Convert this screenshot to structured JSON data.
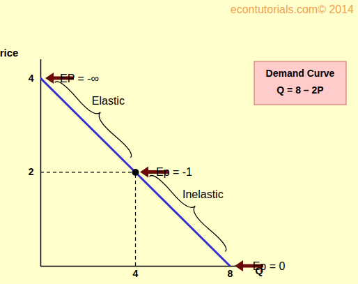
{
  "chart_data": {
    "type": "line",
    "title": "Demand Curve",
    "subtitle": "Q = 8 – 2P",
    "watermark": "econtutorials.com© 2014",
    "x_label": "Q",
    "y_label": "Price",
    "x": [
      0,
      4,
      8
    ],
    "values": [
      4,
      2,
      0
    ],
    "color": "#3a2fd0",
    "xlim": [
      0,
      9
    ],
    "ylim": [
      0,
      4.4
    ],
    "xticks": [
      4,
      8
    ],
    "yticks": [
      2,
      4
    ],
    "grid": false,
    "annotations": [
      {
        "text": "EP = -∞",
        "x": 0,
        "y": 4
      },
      {
        "text": "Ep = -1",
        "x": 4,
        "y": 2,
        "marker": "dot"
      },
      {
        "text": "Ep = 0",
        "x": 8,
        "y": 0
      }
    ],
    "ranges": [
      {
        "text": "Elastic",
        "from": [
          0,
          4
        ],
        "to": [
          4,
          2
        ]
      },
      {
        "text": "Inelastic",
        "from": [
          4,
          2
        ],
        "to": [
          8,
          0
        ]
      }
    ]
  }
}
